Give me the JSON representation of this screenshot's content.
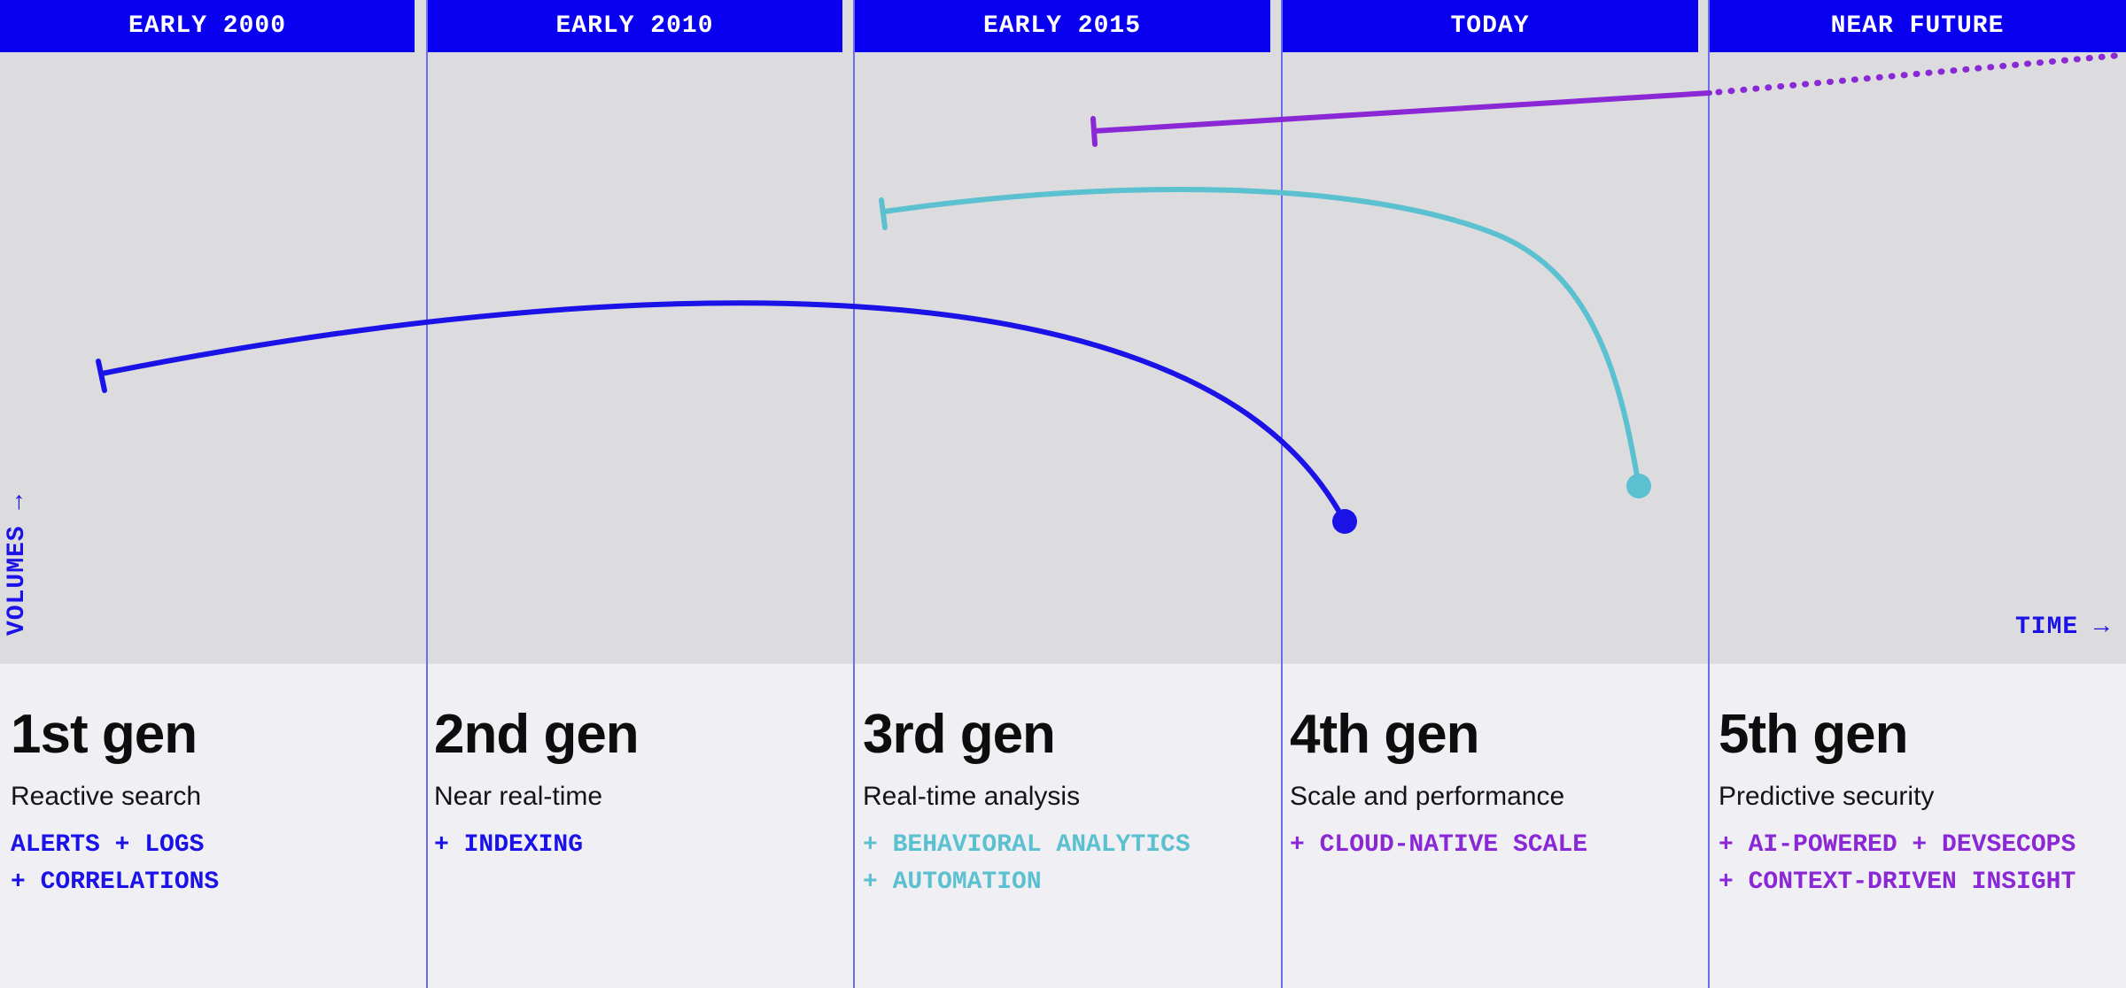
{
  "headers": [
    "EARLY 2000",
    "EARLY 2010",
    "EARLY 2015",
    "TODAY",
    "NEAR FUTURE"
  ],
  "axes": {
    "y_label": "VOLUMES",
    "x_label": "TIME",
    "arrow": "→"
  },
  "generations": [
    {
      "title": "1st gen",
      "subtitle": "Reactive search",
      "features": [
        "ALERTS + LOGS",
        "+ CORRELATIONS"
      ],
      "color": "#1a12e6"
    },
    {
      "title": "2nd gen",
      "subtitle": "Near real-time",
      "features": [
        "+ INDEXING"
      ],
      "color": "#1a12e6"
    },
    {
      "title": "3rd gen",
      "subtitle": "Real-time analysis",
      "features": [
        "+ BEHAVIORAL ANALYTICS",
        "+ AUTOMATION"
      ],
      "color": "#5bc0cf"
    },
    {
      "title": "4th gen",
      "subtitle": "Scale and performance",
      "features": [
        "+ CLOUD-NATIVE SCALE"
      ],
      "color": "#8a28d6"
    },
    {
      "title": "5th gen",
      "subtitle": "Predictive security",
      "features": [
        "+ AI-POWERED + DEVSECOPS",
        "+ CONTEXT-DRIVEN INSIGHT"
      ],
      "color": "#8a28d6"
    }
  ],
  "colors": {
    "header_bg": "#0a00f0",
    "chart_bg": "#dcdcdf",
    "bottom_bg": "#f0f0f4",
    "divider": "#6f6cf2",
    "blue": "#1a12e6",
    "cyan": "#5bc0cf",
    "purple": "#8a28d6"
  }
}
